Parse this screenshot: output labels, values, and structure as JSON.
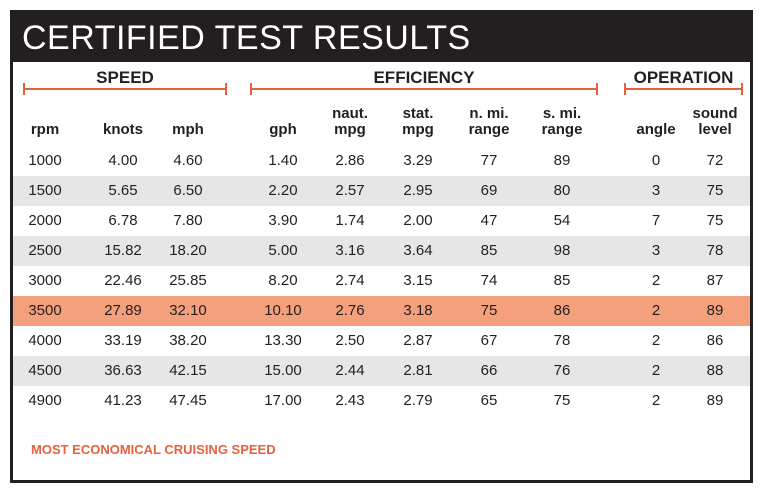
{
  "title": "CERTIFIED TEST RESULTS",
  "groups": [
    "SPEED",
    "EFFICIENCY",
    "OPERATION"
  ],
  "columns": [
    "rpm",
    "knots",
    "mph",
    "gph",
    "naut.\nmpg",
    "stat.\nmpg",
    "n. mi.\nrange",
    "s. mi.\nrange",
    "angle",
    "sound\nlevel"
  ],
  "rows": [
    [
      "1000",
      "4.00",
      "4.60",
      "1.40",
      "2.86",
      "3.29",
      "77",
      "89",
      "0",
      "72"
    ],
    [
      "1500",
      "5.65",
      "6.50",
      "2.20",
      "2.57",
      "2.95",
      "69",
      "80",
      "3",
      "75"
    ],
    [
      "2000",
      "6.78",
      "7.80",
      "3.90",
      "1.74",
      "2.00",
      "47",
      "54",
      "7",
      "75"
    ],
    [
      "2500",
      "15.82",
      "18.20",
      "5.00",
      "3.16",
      "3.64",
      "85",
      "98",
      "3",
      "78"
    ],
    [
      "3000",
      "22.46",
      "25.85",
      "8.20",
      "2.74",
      "3.15",
      "74",
      "85",
      "2",
      "87"
    ],
    [
      "3500",
      "27.89",
      "32.10",
      "10.10",
      "2.76",
      "3.18",
      "75",
      "86",
      "2",
      "89"
    ],
    [
      "4000",
      "33.19",
      "38.20",
      "13.30",
      "2.50",
      "2.87",
      "67",
      "78",
      "2",
      "86"
    ],
    [
      "4500",
      "36.63",
      "42.15",
      "15.00",
      "2.44",
      "2.81",
      "66",
      "76",
      "2",
      "88"
    ],
    [
      "4900",
      "41.23",
      "47.45",
      "17.00",
      "2.43",
      "2.79",
      "65",
      "75",
      "2",
      "89"
    ]
  ],
  "highlighted_row": 5,
  "note": "MOST ECONOMICAL CRUISING SPEED",
  "colors": {
    "header_bg": "#231f20",
    "accent": "#e8603c",
    "highlight": "#f5a07d",
    "stripe": "#e6e6e7"
  }
}
